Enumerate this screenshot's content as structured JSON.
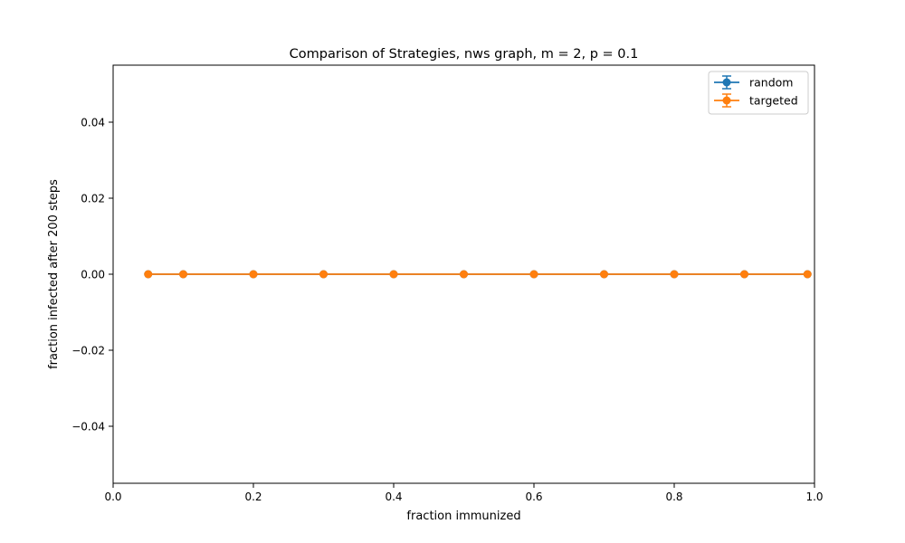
{
  "chart_data": {
    "type": "line",
    "title": "Comparison of Strategies, nws graph, m = 2, p = 0.1",
    "xlabel": "fraction immunized",
    "ylabel": "fraction infected after 200 steps",
    "xlim": [
      0.0,
      1.0
    ],
    "ylim": [
      -0.055,
      0.055
    ],
    "xticks": [
      0.0,
      0.2,
      0.4,
      0.6,
      0.8,
      1.0
    ],
    "xtick_labels": [
      "0.0",
      "0.2",
      "0.4",
      "0.6",
      "0.8",
      "1.0"
    ],
    "yticks": [
      -0.04,
      -0.02,
      0.0,
      0.02,
      0.04
    ],
    "ytick_labels": [
      "−0.04",
      "−0.02",
      "0.00",
      "0.02",
      "0.04"
    ],
    "grid": false,
    "legend": "top-right",
    "x": [
      0.05,
      0.1,
      0.2,
      0.3,
      0.4,
      0.5,
      0.6,
      0.7,
      0.8,
      0.9,
      0.99
    ],
    "series": [
      {
        "name": "random",
        "color": "#1f77b4",
        "marker": "circle",
        "error_bars": true,
        "values": [
          0,
          0,
          0,
          0,
          0,
          0,
          0,
          0,
          0,
          0,
          0
        ]
      },
      {
        "name": "targeted",
        "color": "#ff7f0e",
        "marker": "circle",
        "error_bars": true,
        "values": [
          0,
          0,
          0,
          0,
          0,
          0,
          0,
          0,
          0,
          0,
          0
        ]
      }
    ]
  }
}
